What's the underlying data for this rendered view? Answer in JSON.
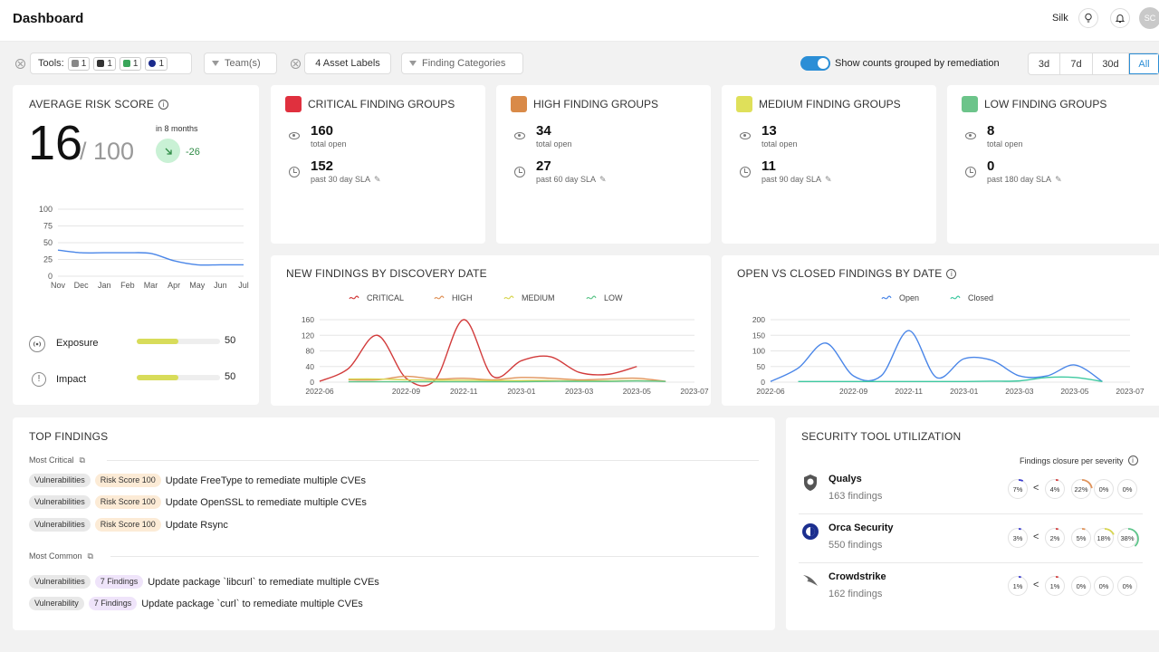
{
  "header": {
    "title": "Dashboard",
    "user_name": "Silk",
    "avatar_initials": "SC"
  },
  "filters": {
    "tools_label": "Tools:",
    "tool_counts": [
      "1",
      "1",
      "1",
      "1"
    ],
    "teams_label": "Team(s)",
    "asset_labels": "4 Asset Labels",
    "finding_categories": "Finding Categories",
    "toggle_label": "Show counts grouped by remediation",
    "toggle_on": true,
    "ranges": [
      "3d",
      "7d",
      "30d",
      "All"
    ],
    "selected_range": "All"
  },
  "risk": {
    "title": "AVERAGE RISK SCORE",
    "score": "16",
    "max": "/ 100",
    "period": "in 8 months",
    "delta": "-26",
    "exposure_label": "Exposure",
    "exposure_value": "50",
    "exposure_fraction": 0.5,
    "impact_label": "Impact",
    "impact_value": "50",
    "impact_fraction": 0.5
  },
  "risk_chart": {
    "type": "line",
    "x": [
      "Nov",
      "Dec",
      "Jan",
      "Feb",
      "Mar",
      "Apr",
      "May",
      "Jun",
      "Jul"
    ],
    "y_ticks": [
      "0",
      "25",
      "50",
      "75",
      "100"
    ],
    "ylim": [
      0,
      100
    ],
    "values": [
      39,
      35,
      35,
      35,
      34,
      23,
      17,
      17,
      17
    ],
    "color": "#4a86e8"
  },
  "severity_cards": [
    {
      "title": "CRITICAL FINDING GROUPS",
      "color": "#e0303e",
      "open": "160",
      "open_label": "total open",
      "sla": "152",
      "sla_label": "past 30 day SLA"
    },
    {
      "title": "HIGH FINDING GROUPS",
      "color": "#d98a48",
      "open": "34",
      "open_label": "total open",
      "sla": "27",
      "sla_label": "past 60 day SLA"
    },
    {
      "title": "MEDIUM FINDING GROUPS",
      "color": "#dfe05a",
      "open": "13",
      "open_label": "total open",
      "sla": "11",
      "sla_label": "past 90 day SLA"
    },
    {
      "title": "LOW FINDING GROUPS",
      "color": "#6cc48a",
      "open": "8",
      "open_label": "total open",
      "sla": "0",
      "sla_label": "past 180 day SLA"
    }
  ],
  "new_findings": {
    "title": "NEW FINDINGS BY DISCOVERY DATE"
  },
  "open_closed": {
    "title": "OPEN VS CLOSED FINDINGS BY DATE"
  },
  "chart_data": [
    {
      "type": "line",
      "title": "NEW FINDINGS BY DISCOVERY DATE",
      "x": [
        "2022-06",
        "2022-07",
        "2022-08",
        "2022-09",
        "2022-10",
        "2022-11",
        "2022-12",
        "2023-01",
        "2023-02",
        "2023-03",
        "2023-04",
        "2023-05",
        "2023-06",
        "2023-07"
      ],
      "x_ticks": [
        "2022-06",
        "2022-09",
        "2022-11",
        "2023-01",
        "2023-03",
        "2023-05",
        "2023-07"
      ],
      "y_ticks": [
        "0",
        "40",
        "80",
        "120",
        "160"
      ],
      "ylim": [
        0,
        160
      ],
      "series": [
        {
          "name": "CRITICAL",
          "color": "#d23b3b",
          "values": [
            2,
            35,
            120,
            10,
            5,
            160,
            15,
            55,
            65,
            25,
            20,
            40,
            null,
            null
          ]
        },
        {
          "name": "HIGH",
          "color": "#e0935a",
          "values": [
            null,
            6,
            6,
            15,
            8,
            10,
            6,
            12,
            10,
            6,
            8,
            10,
            2,
            null
          ]
        },
        {
          "name": "MEDIUM",
          "color": "#d8d653",
          "values": [
            null,
            8,
            8,
            6,
            5,
            5,
            4,
            4,
            4,
            3,
            3,
            4,
            2,
            null
          ]
        },
        {
          "name": "LOW",
          "color": "#5ec58a",
          "values": [
            null,
            1,
            1,
            1,
            1,
            1,
            1,
            1,
            2,
            2,
            2,
            3,
            2,
            null
          ]
        }
      ]
    },
    {
      "type": "line",
      "title": "OPEN VS CLOSED FINDINGS BY DATE",
      "x": [
        "2022-06",
        "2022-07",
        "2022-08",
        "2022-09",
        "2022-10",
        "2022-11",
        "2022-12",
        "2023-01",
        "2023-02",
        "2023-03",
        "2023-04",
        "2023-05",
        "2023-06",
        "2023-07"
      ],
      "x_ticks": [
        "2022-06",
        "2022-09",
        "2022-11",
        "2023-01",
        "2023-03",
        "2023-05",
        "2023-07"
      ],
      "y_ticks": [
        "0",
        "50",
        "100",
        "150",
        "200"
      ],
      "ylim": [
        0,
        200
      ],
      "series": [
        {
          "name": "Open",
          "color": "#4a86e8",
          "values": [
            2,
            45,
            125,
            20,
            20,
            165,
            15,
            75,
            70,
            20,
            20,
            55,
            2,
            null
          ]
        },
        {
          "name": "Closed",
          "color": "#3ec9a0",
          "values": [
            null,
            2,
            2,
            2,
            2,
            2,
            2,
            2,
            3,
            4,
            15,
            15,
            2,
            null
          ]
        }
      ]
    }
  ],
  "top_findings": {
    "title": "TOP FINDINGS",
    "most_critical_label": "Most Critical",
    "most_common_label": "Most Common",
    "critical": [
      {
        "category": "Vulnerabilities",
        "badge": "Risk Score 100",
        "text": "Update FreeType to remediate multiple CVEs"
      },
      {
        "category": "Vulnerabilities",
        "badge": "Risk Score 100",
        "text": "Update OpenSSL to remediate multiple CVEs"
      },
      {
        "category": "Vulnerabilities",
        "badge": "Risk Score 100",
        "text": "Update Rsync"
      }
    ],
    "common": [
      {
        "category": "Vulnerabilities",
        "badge": "7 Findings",
        "text": "Update package `libcurl` to remediate multiple CVEs"
      },
      {
        "category": "Vulnerability",
        "badge": "7 Findings",
        "text": "Update package `curl` to remediate multiple CVEs"
      }
    ]
  },
  "tool_util": {
    "title": "SECURITY TOOL UTILIZATION",
    "subtitle": "Findings closure per severity",
    "tools": [
      {
        "name": "Qualys",
        "count": "163 findings",
        "rates": [
          "7%",
          "4%",
          "22%",
          "0%",
          "0%"
        ]
      },
      {
        "name": "Orca Security",
        "count": "550 findings",
        "rates": [
          "3%",
          "2%",
          "5%",
          "18%",
          "38%"
        ]
      },
      {
        "name": "Crowdstrike",
        "count": "162 findings",
        "rates": [
          "1%",
          "1%",
          "0%",
          "0%",
          "0%"
        ]
      }
    ]
  }
}
